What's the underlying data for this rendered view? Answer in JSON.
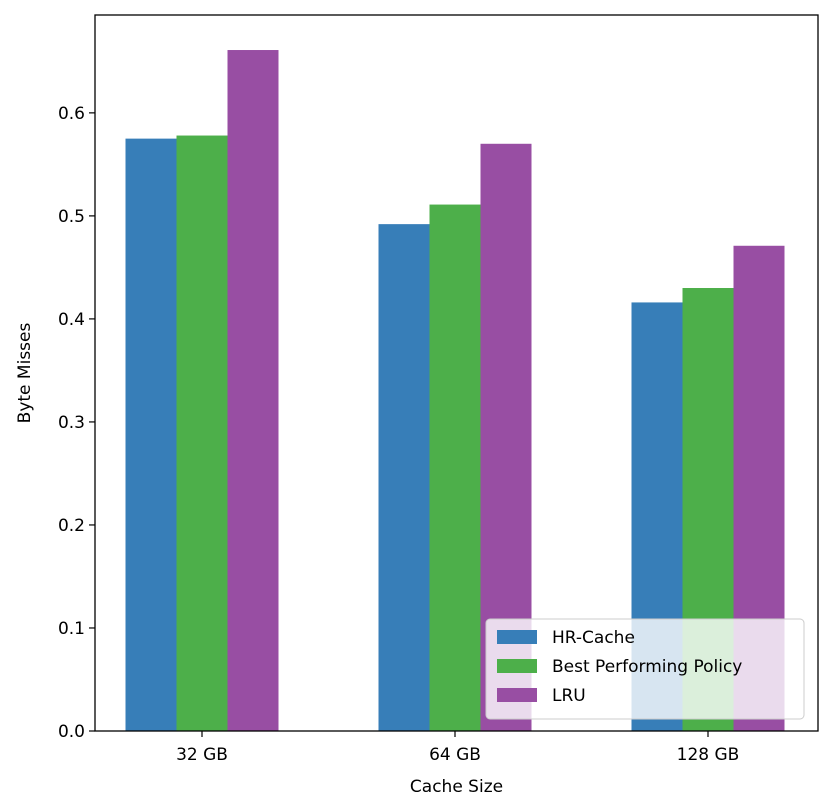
{
  "chart_data": {
    "type": "bar",
    "title": "",
    "xlabel": "Cache Size",
    "ylabel": "Byte Misses",
    "categories": [
      "32 GB",
      "64 GB",
      "128 GB"
    ],
    "series": [
      {
        "name": "HR-Cache",
        "color": "#377eb8",
        "values": [
          0.575,
          0.492,
          0.416
        ]
      },
      {
        "name": "Best Performing Policy",
        "color": "#4daf4a",
        "values": [
          0.578,
          0.511,
          0.43
        ]
      },
      {
        "name": "LRU",
        "color": "#984ea3",
        "values": [
          0.661,
          0.57,
          0.471
        ]
      }
    ],
    "ylim": [
      0,
      0.695
    ],
    "yticks": [
      0.0,
      0.1,
      0.2,
      0.3,
      0.4,
      0.5,
      0.6
    ],
    "ytick_labels": [
      "0.0",
      "0.1",
      "0.2",
      "0.3",
      "0.4",
      "0.5",
      "0.6"
    ],
    "grid": false,
    "legend_position": "lower-right"
  }
}
